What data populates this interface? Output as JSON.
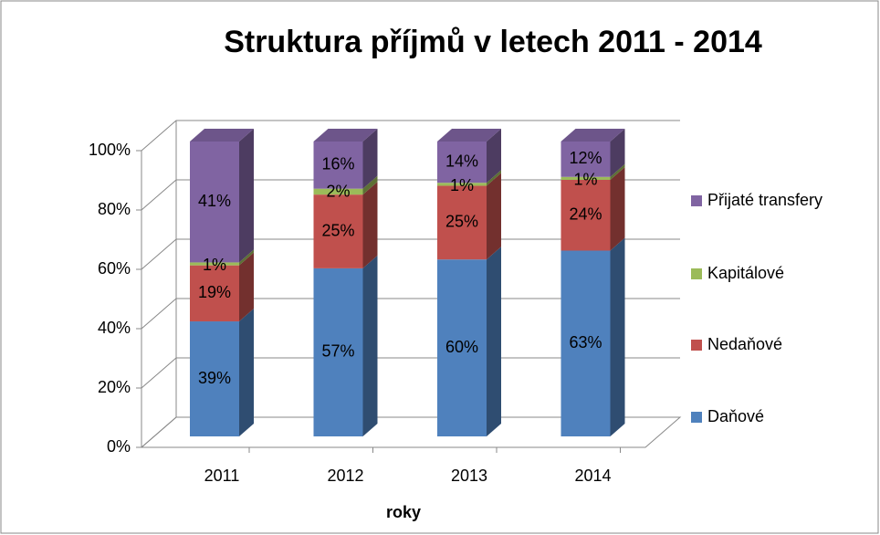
{
  "chart_data": {
    "type": "bar3d_stacked",
    "title": "Struktura příjmů v letech 2011 - 2014",
    "x_label": "roky",
    "categories": [
      "2011",
      "2012",
      "2013",
      "2014"
    ],
    "series": [
      {
        "name": "Daňové",
        "color": "#4f81bd",
        "values": [
          39,
          57,
          60,
          63
        ],
        "value_labels": [
          "39%",
          "57%",
          "60%",
          "63%"
        ]
      },
      {
        "name": "Nedaňové",
        "color": "#c0504d",
        "values": [
          19,
          25,
          25,
          24
        ],
        "value_labels": [
          "19%",
          "25%",
          "25%",
          "24%"
        ]
      },
      {
        "name": "Kapitálové",
        "color": "#9bbb59",
        "values": [
          1,
          2,
          1,
          1
        ],
        "value_labels": [
          "1%",
          "2%",
          "1%",
          "1%"
        ]
      },
      {
        "name": "Přijaté transfery",
        "color": "#8064a2",
        "values": [
          41,
          16,
          14,
          12
        ],
        "value_labels": [
          "41%",
          "16%",
          "14%",
          "12%"
        ]
      }
    ],
    "ylim": [
      0,
      100
    ],
    "yticks": [
      {
        "value": 0,
        "label": "0%"
      },
      {
        "value": 20,
        "label": "20%"
      },
      {
        "value": 40,
        "label": "40%"
      },
      {
        "value": 60,
        "label": "60%"
      },
      {
        "value": 80,
        "label": "80%"
      },
      {
        "value": 100,
        "label": "100%"
      }
    ],
    "grid": true,
    "legend": "right"
  }
}
